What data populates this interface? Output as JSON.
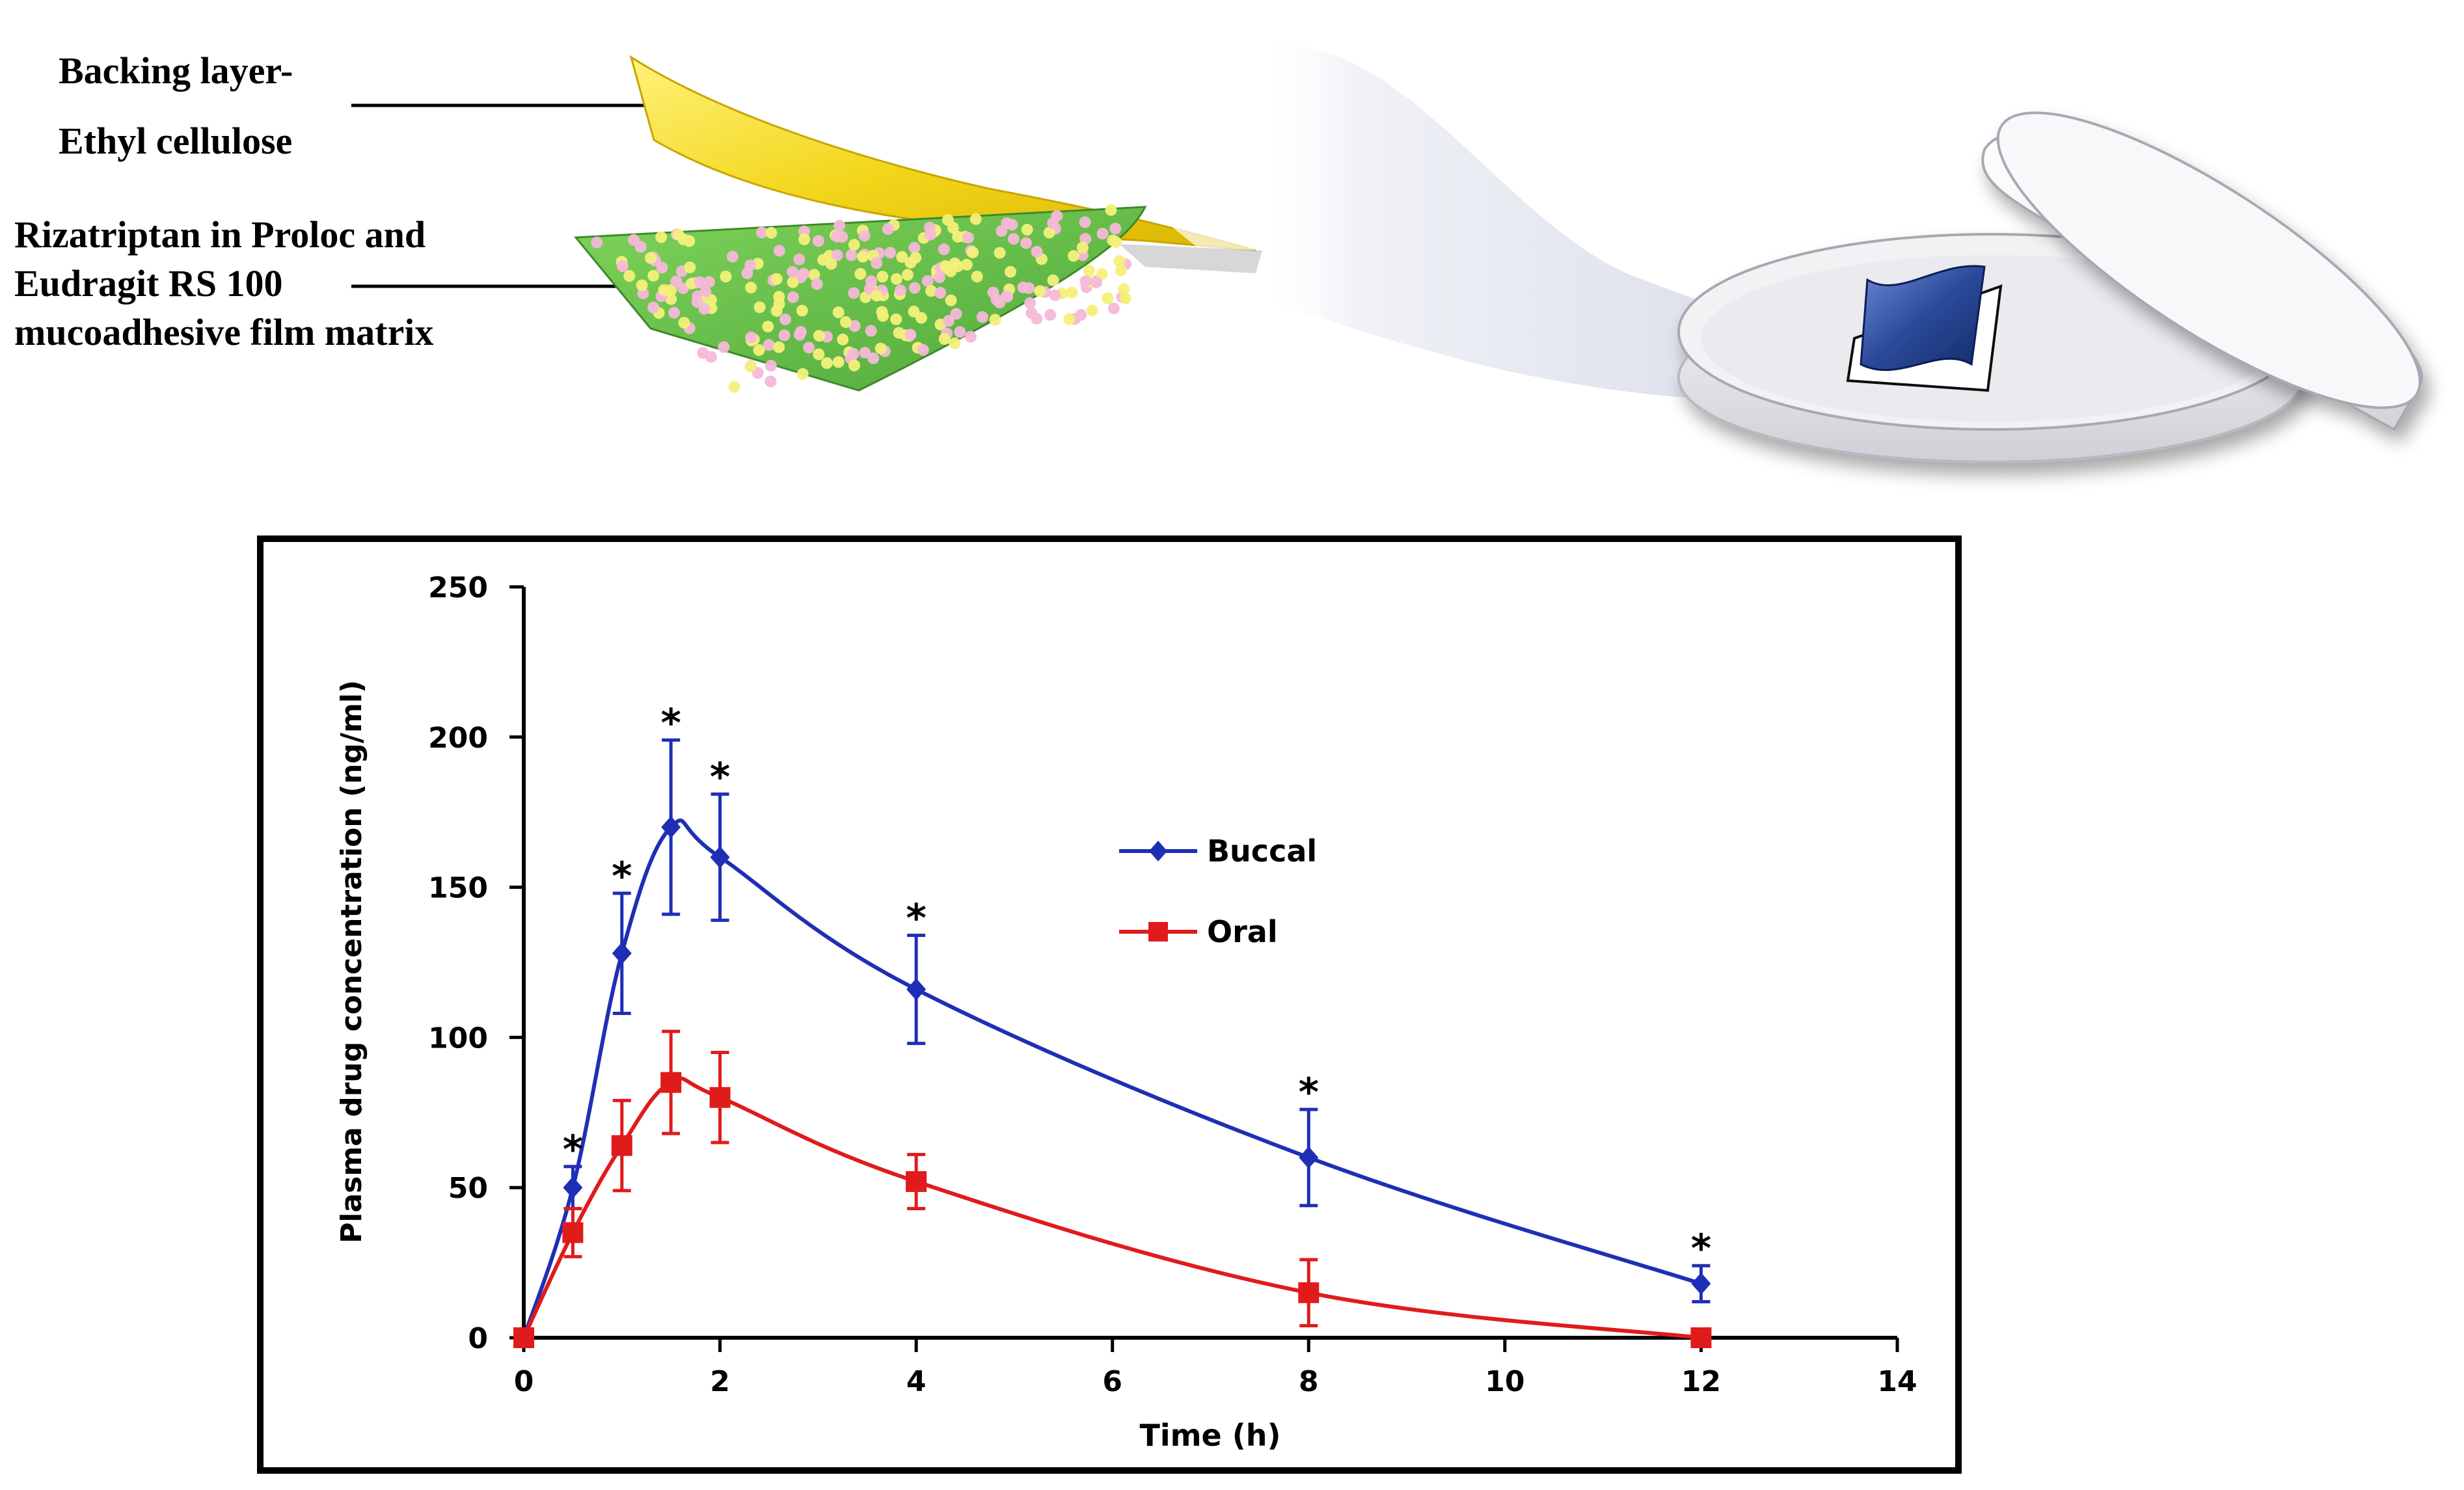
{
  "diagram": {
    "backing_label_line1": "Backing layer-",
    "backing_label_line2": "Ethyl cellulose",
    "matrix_label_line1": "Rizatriptan in Proloc and",
    "matrix_label_line2": "Eudragit RS 100",
    "matrix_label_line3": "mucoadhesive film matrix",
    "colors": {
      "backing_film": "#f2d61a",
      "matrix_film": "#6cc24a",
      "dot_pink": "#f6b8d8",
      "dot_yellow": "#f3f07a",
      "dish": "#e6e6ea",
      "sample": "#2b4a9a"
    }
  },
  "chart_data": {
    "type": "line",
    "title": "",
    "xlabel": "Time (h)",
    "ylabel": "Plasma drug concentration (ng/ml)",
    "xlim": [
      0,
      14
    ],
    "ylim": [
      0,
      250
    ],
    "xticks": [
      0,
      2,
      4,
      6,
      8,
      10,
      12,
      14
    ],
    "yticks": [
      0,
      50,
      100,
      150,
      200,
      250
    ],
    "grid": false,
    "legend_position": "center-right",
    "significance_marker": "*",
    "series": [
      {
        "name": "Buccal",
        "marker": "diamond",
        "color": "#1f2fb5",
        "x": [
          0,
          0.5,
          1,
          1.5,
          2,
          4,
          8,
          12
        ],
        "y": [
          0,
          50,
          128,
          170,
          160,
          116,
          60,
          18
        ],
        "error": [
          0,
          7,
          20,
          29,
          21,
          18,
          16,
          6
        ],
        "significant": [
          false,
          true,
          true,
          true,
          true,
          true,
          true,
          true
        ]
      },
      {
        "name": "Oral",
        "marker": "square",
        "color": "#e01b1b",
        "x": [
          0,
          0.5,
          1,
          1.5,
          2,
          4,
          8,
          12
        ],
        "y": [
          0,
          35,
          64,
          85,
          80,
          52,
          15,
          0
        ],
        "error": [
          0,
          8,
          15,
          17,
          15,
          9,
          11,
          0
        ],
        "significant": [
          false,
          false,
          false,
          false,
          false,
          false,
          false,
          false
        ]
      }
    ]
  }
}
